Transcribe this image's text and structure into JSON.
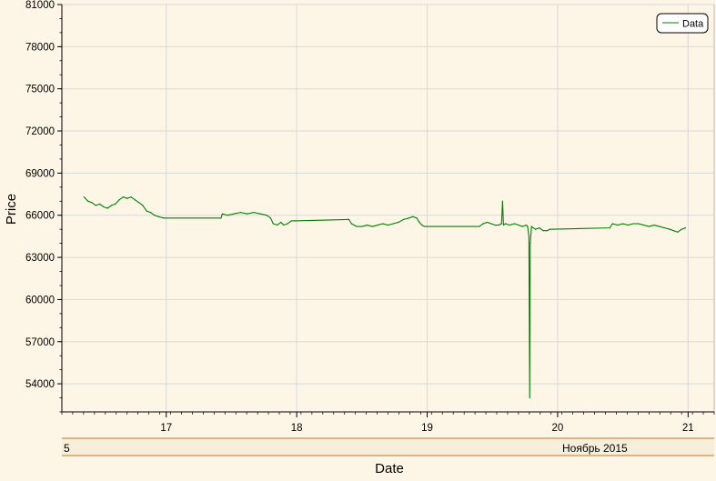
{
  "chart_data": {
    "type": "line",
    "xlabel": "Date",
    "ylabel": "Price",
    "xlim": [
      16.2,
      21.2
    ],
    "ylim": [
      52000,
      81000
    ],
    "y_ticks": [
      54000,
      57000,
      60000,
      63000,
      66000,
      69000,
      72000,
      75000,
      78000,
      81000
    ],
    "x_ticks": [
      17,
      18,
      19,
      20,
      21
    ],
    "x_tick_labels": [
      "17",
      "18",
      "19",
      "20",
      "21"
    ],
    "secondary_axis": {
      "left_label": "5",
      "right_label": "Ноябрь 2015"
    },
    "grid": true,
    "legend": {
      "position": "top-right",
      "entries": [
        "Data"
      ]
    },
    "series": [
      {
        "name": "Data",
        "color": "#008000",
        "points": [
          [
            16.37,
            67300
          ],
          [
            16.4,
            67000
          ],
          [
            16.43,
            66900
          ],
          [
            16.46,
            66700
          ],
          [
            16.49,
            66800
          ],
          [
            16.52,
            66600
          ],
          [
            16.55,
            66500
          ],
          [
            16.58,
            66700
          ],
          [
            16.61,
            66800
          ],
          [
            16.64,
            67100
          ],
          [
            16.67,
            67300
          ],
          [
            16.7,
            67200
          ],
          [
            16.73,
            67300
          ],
          [
            16.76,
            67100
          ],
          [
            16.79,
            66900
          ],
          [
            16.82,
            66700
          ],
          [
            16.85,
            66300
          ],
          [
            16.88,
            66200
          ],
          [
            16.91,
            66000
          ],
          [
            16.94,
            65900
          ],
          [
            16.98,
            65800
          ],
          [
            17.42,
            65800
          ],
          [
            17.43,
            66100
          ],
          [
            17.47,
            66000
          ],
          [
            17.52,
            66100
          ],
          [
            17.57,
            66200
          ],
          [
            17.62,
            66100
          ],
          [
            17.67,
            66200
          ],
          [
            17.72,
            66100
          ],
          [
            17.77,
            66000
          ],
          [
            17.8,
            65800
          ],
          [
            17.82,
            65400
          ],
          [
            17.85,
            65300
          ],
          [
            17.88,
            65500
          ],
          [
            17.9,
            65300
          ],
          [
            17.93,
            65400
          ],
          [
            17.96,
            65600
          ],
          [
            17.98,
            65600
          ],
          [
            18.4,
            65700
          ],
          [
            18.42,
            65400
          ],
          [
            18.46,
            65200
          ],
          [
            18.5,
            65200
          ],
          [
            18.54,
            65300
          ],
          [
            18.58,
            65200
          ],
          [
            18.62,
            65300
          ],
          [
            18.66,
            65400
          ],
          [
            18.7,
            65300
          ],
          [
            18.74,
            65400
          ],
          [
            18.78,
            65500
          ],
          [
            18.82,
            65700
          ],
          [
            18.86,
            65800
          ],
          [
            18.89,
            65900
          ],
          [
            18.92,
            65800
          ],
          [
            18.94,
            65500
          ],
          [
            18.96,
            65300
          ],
          [
            18.98,
            65200
          ],
          [
            19.4,
            65200
          ],
          [
            19.43,
            65400
          ],
          [
            19.46,
            65500
          ],
          [
            19.49,
            65400
          ],
          [
            19.52,
            65300
          ],
          [
            19.55,
            65300
          ],
          [
            19.57,
            65400
          ],
          [
            19.578,
            67000
          ],
          [
            19.585,
            65300
          ],
          [
            19.6,
            65400
          ],
          [
            19.63,
            65300
          ],
          [
            19.67,
            65400
          ],
          [
            19.7,
            65300
          ],
          [
            19.73,
            65200
          ],
          [
            19.76,
            65300
          ],
          [
            19.77,
            65200
          ],
          [
            19.78,
            64500
          ],
          [
            19.786,
            53000
          ],
          [
            19.79,
            64000
          ],
          [
            19.8,
            65200
          ],
          [
            19.83,
            65000
          ],
          [
            19.86,
            65100
          ],
          [
            19.89,
            64900
          ],
          [
            19.92,
            64900
          ],
          [
            19.94,
            65000
          ],
          [
            20.4,
            65100
          ],
          [
            20.42,
            65400
          ],
          [
            20.46,
            65300
          ],
          [
            20.5,
            65400
          ],
          [
            20.54,
            65300
          ],
          [
            20.58,
            65400
          ],
          [
            20.62,
            65400
          ],
          [
            20.66,
            65300
          ],
          [
            20.7,
            65200
          ],
          [
            20.74,
            65300
          ],
          [
            20.78,
            65200
          ],
          [
            20.82,
            65100
          ],
          [
            20.86,
            65000
          ],
          [
            20.89,
            64900
          ],
          [
            20.92,
            64800
          ],
          [
            20.95,
            65000
          ],
          [
            20.98,
            65100
          ]
        ]
      }
    ]
  }
}
